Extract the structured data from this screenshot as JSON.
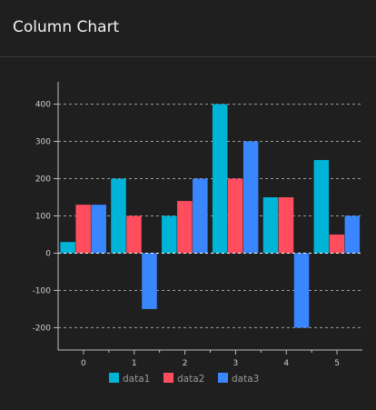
{
  "card": {
    "title": "Column Chart"
  },
  "colors": {
    "data1": "#00b4d8",
    "data2": "#ff4d5e",
    "data3": "#3a86ff",
    "grid": "#bdbdbd",
    "axis": "#bdbdbd",
    "label": "#cfcfcf"
  },
  "chart_data": {
    "type": "bar",
    "categories": [
      "0",
      "1",
      "2",
      "3",
      "4",
      "5"
    ],
    "series": [
      {
        "name": "data1",
        "values": [
          30,
          200,
          100,
          400,
          150,
          250
        ]
      },
      {
        "name": "data2",
        "values": [
          130,
          100,
          140,
          200,
          150,
          50
        ]
      },
      {
        "name": "data3",
        "values": [
          130,
          -150,
          200,
          300,
          -200,
          100
        ]
      }
    ],
    "yticks": [
      -200,
      -100,
      0,
      100,
      200,
      300,
      400
    ],
    "ylim": [
      -260,
      460
    ],
    "grid": true,
    "legend_position": "bottom"
  }
}
